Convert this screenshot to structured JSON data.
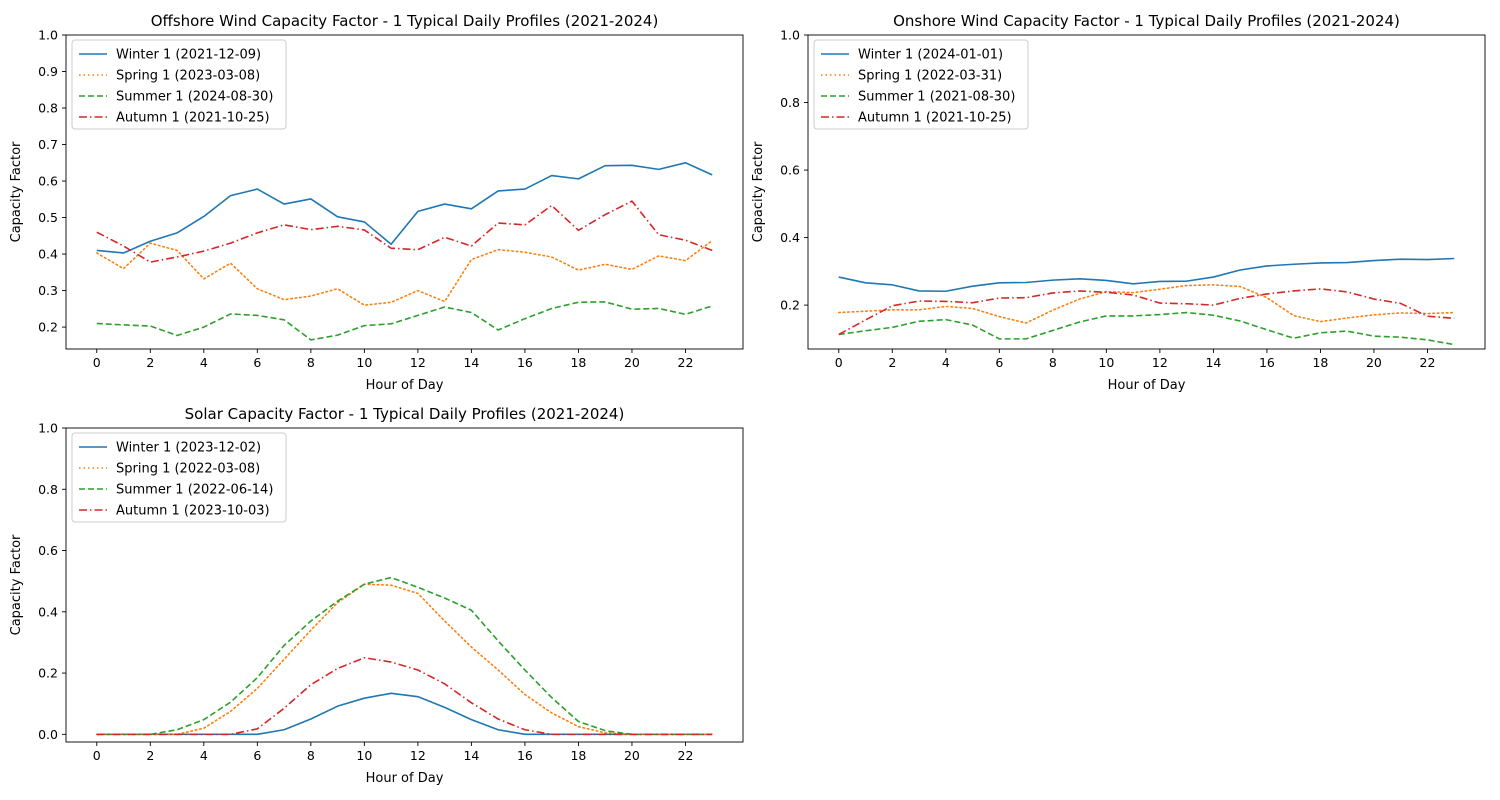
{
  "chart_data": [
    {
      "type": "line",
      "title": "Offshore Wind Capacity Factor - 1 Typical Daily Profiles (2021-2024)",
      "xlabel": "Hour of Day",
      "ylabel": "Capacity Factor",
      "xlim": [
        -1.15,
        24.15
      ],
      "ylim": [
        0.14,
        1.0
      ],
      "xticks": [
        0,
        2,
        4,
        6,
        8,
        10,
        12,
        14,
        16,
        18,
        20,
        22
      ],
      "yticks": [
        0.2,
        0.3,
        0.4,
        0.5,
        0.6,
        0.7,
        0.8,
        0.9,
        1.0
      ],
      "ytick_labels": [
        "0.2",
        "0.3",
        "0.4",
        "0.5",
        "0.6",
        "0.7",
        "0.8",
        "0.9",
        "1.0"
      ],
      "legend_position": "top-left",
      "grid": false,
      "x": [
        0,
        1,
        2,
        3,
        4,
        5,
        6,
        7,
        8,
        9,
        10,
        11,
        12,
        13,
        14,
        15,
        16,
        17,
        18,
        19,
        20,
        21,
        22,
        23
      ],
      "series": [
        {
          "name": "Winter 1 (2021-12-09)",
          "color": "#1f77b4",
          "style": "solid",
          "values": [
            0.41,
            0.403,
            0.435,
            0.458,
            0.503,
            0.56,
            0.578,
            0.537,
            0.551,
            0.502,
            0.488,
            0.427,
            0.517,
            0.537,
            0.524,
            0.573,
            0.578,
            0.615,
            0.606,
            0.642,
            0.643,
            0.632,
            0.65,
            0.617
          ]
        },
        {
          "name": "Spring 1 (2023-03-08)",
          "color": "#ff7f0e",
          "style": "dotted",
          "values": [
            0.403,
            0.36,
            0.43,
            0.41,
            0.332,
            0.375,
            0.305,
            0.275,
            0.285,
            0.305,
            0.26,
            0.268,
            0.3,
            0.27,
            0.385,
            0.412,
            0.405,
            0.392,
            0.356,
            0.372,
            0.358,
            0.395,
            0.382,
            0.437
          ]
        },
        {
          "name": "Summer 1 (2024-08-30)",
          "color": "#2ca02c",
          "style": "dashed",
          "values": [
            0.21,
            0.206,
            0.203,
            0.177,
            0.2,
            0.236,
            0.232,
            0.22,
            0.165,
            0.178,
            0.204,
            0.209,
            0.232,
            0.255,
            0.24,
            0.192,
            0.223,
            0.251,
            0.268,
            0.269,
            0.249,
            0.251,
            0.235,
            0.258
          ]
        },
        {
          "name": "Autumn 1 (2021-10-25)",
          "color": "#d62728",
          "style": "dashdot",
          "values": [
            0.46,
            0.422,
            0.378,
            0.392,
            0.408,
            0.43,
            0.458,
            0.48,
            0.467,
            0.476,
            0.466,
            0.416,
            0.412,
            0.446,
            0.422,
            0.485,
            0.48,
            0.533,
            0.465,
            0.508,
            0.545,
            0.453,
            0.438,
            0.41
          ]
        }
      ]
    },
    {
      "type": "line",
      "title": "Onshore Wind Capacity Factor - 1 Typical Daily Profiles (2021-2024)",
      "xlabel": "Hour of Day",
      "ylabel": "Capacity Factor",
      "xlim": [
        -1.15,
        24.15
      ],
      "ylim": [
        0.07,
        1.0
      ],
      "xticks": [
        0,
        2,
        4,
        6,
        8,
        10,
        12,
        14,
        16,
        18,
        20,
        22
      ],
      "yticks": [
        0.2,
        0.4,
        0.6,
        0.8,
        1.0
      ],
      "ytick_labels": [
        "0.2",
        "0.4",
        "0.6",
        "0.8",
        "1.0"
      ],
      "legend_position": "top-left",
      "grid": false,
      "x": [
        0,
        1,
        2,
        3,
        4,
        5,
        6,
        7,
        8,
        9,
        10,
        11,
        12,
        13,
        14,
        15,
        16,
        17,
        18,
        19,
        20,
        21,
        22,
        23
      ],
      "series": [
        {
          "name": "Winter 1 (2024-01-01)",
          "color": "#1f77b4",
          "style": "solid",
          "values": [
            0.283,
            0.266,
            0.26,
            0.242,
            0.241,
            0.256,
            0.266,
            0.267,
            0.274,
            0.278,
            0.273,
            0.263,
            0.27,
            0.271,
            0.283,
            0.304,
            0.316,
            0.321,
            0.325,
            0.326,
            0.332,
            0.336,
            0.335,
            0.338
          ]
        },
        {
          "name": "Spring 1 (2022-03-31)",
          "color": "#ff7f0e",
          "style": "dotted",
          "values": [
            0.178,
            0.182,
            0.186,
            0.186,
            0.196,
            0.19,
            0.166,
            0.147,
            0.185,
            0.218,
            0.24,
            0.237,
            0.247,
            0.258,
            0.26,
            0.255,
            0.222,
            0.169,
            0.151,
            0.162,
            0.171,
            0.177,
            0.175,
            0.178
          ]
        },
        {
          "name": "Summer 1 (2021-08-30)",
          "color": "#2ca02c",
          "style": "dashed",
          "values": [
            0.113,
            0.124,
            0.134,
            0.152,
            0.157,
            0.141,
            0.1,
            0.1,
            0.125,
            0.15,
            0.168,
            0.168,
            0.172,
            0.178,
            0.17,
            0.153,
            0.127,
            0.102,
            0.118,
            0.123,
            0.108,
            0.105,
            0.097,
            0.083
          ]
        },
        {
          "name": "Autumn 1 (2021-10-25)",
          "color": "#d62728",
          "style": "dashdot",
          "values": [
            0.113,
            0.156,
            0.198,
            0.212,
            0.211,
            0.207,
            0.221,
            0.222,
            0.236,
            0.242,
            0.238,
            0.23,
            0.206,
            0.204,
            0.2,
            0.22,
            0.233,
            0.242,
            0.248,
            0.239,
            0.218,
            0.205,
            0.167,
            0.161
          ]
        }
      ]
    },
    {
      "type": "line",
      "title": "Solar Capacity Factor - 1 Typical Daily Profiles (2021-2024)",
      "xlabel": "Hour of Day",
      "ylabel": "Capacity Factor",
      "xlim": [
        -1.15,
        24.15
      ],
      "ylim": [
        -0.025,
        1.0
      ],
      "xticks": [
        0,
        2,
        4,
        6,
        8,
        10,
        12,
        14,
        16,
        18,
        20,
        22
      ],
      "yticks": [
        0.0,
        0.2,
        0.4,
        0.6,
        0.8,
        1.0
      ],
      "ytick_labels": [
        "0.0",
        "0.2",
        "0.4",
        "0.6",
        "0.8",
        "1.0"
      ],
      "legend_position": "top-left",
      "grid": false,
      "x": [
        0,
        1,
        2,
        3,
        4,
        5,
        6,
        7,
        8,
        9,
        10,
        11,
        12,
        13,
        14,
        15,
        16,
        17,
        18,
        19,
        20,
        21,
        22,
        23
      ],
      "series": [
        {
          "name": "Winter 1 (2023-12-02)",
          "color": "#1f77b4",
          "style": "solid",
          "values": [
            0,
            0,
            0,
            0,
            0,
            0,
            0,
            0.015,
            0.05,
            0.092,
            0.118,
            0.134,
            0.123,
            0.088,
            0.048,
            0.015,
            0,
            0,
            0,
            0,
            0,
            0,
            0,
            0
          ]
        },
        {
          "name": "Spring 1 (2022-03-08)",
          "color": "#ff7f0e",
          "style": "dotted",
          "values": [
            0,
            0,
            0,
            0,
            0.02,
            0.075,
            0.15,
            0.245,
            0.34,
            0.43,
            0.49,
            0.487,
            0.46,
            0.37,
            0.285,
            0.21,
            0.13,
            0.07,
            0.025,
            0.005,
            0,
            0,
            0,
            0
          ]
        },
        {
          "name": "Summer 1 (2022-06-14)",
          "color": "#2ca02c",
          "style": "dashed",
          "values": [
            0,
            0,
            0,
            0.015,
            0.048,
            0.105,
            0.185,
            0.29,
            0.37,
            0.435,
            0.49,
            0.512,
            0.48,
            0.445,
            0.405,
            0.305,
            0.21,
            0.12,
            0.042,
            0.012,
            0,
            0,
            0,
            0
          ]
        },
        {
          "name": "Autumn 1 (2023-10-03)",
          "color": "#d62728",
          "style": "dashdot",
          "values": [
            0,
            0,
            0,
            0,
            0,
            0,
            0.018,
            0.085,
            0.162,
            0.215,
            0.25,
            0.236,
            0.21,
            0.165,
            0.103,
            0.05,
            0.015,
            0,
            0,
            0,
            0,
            0,
            0,
            0
          ]
        }
      ]
    }
  ]
}
